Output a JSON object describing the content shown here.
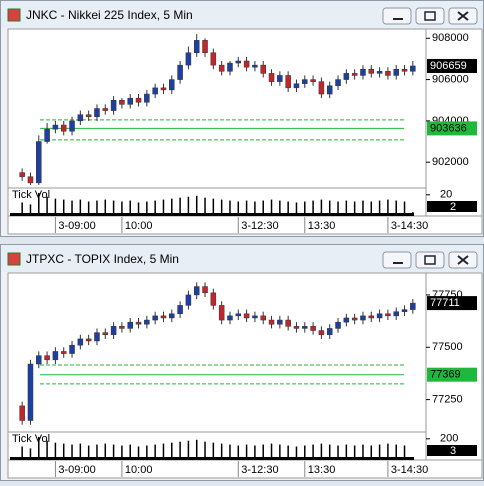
{
  "chart_data": [
    {
      "type": "candlestick",
      "title": "JNKC - Nikkei 225 Index, 5 Min",
      "open": [
        901500,
        901300,
        901000,
        903000,
        903600,
        903800,
        903500,
        904000,
        904300,
        904200,
        904600,
        904500,
        905000,
        904800,
        905100,
        904900,
        905300,
        905600,
        905500,
        906000,
        906700,
        907300,
        907900,
        907300,
        906700,
        906400,
        906800,
        906900,
        906600,
        906700,
        906300,
        905900,
        906200,
        905600,
        905800,
        906000,
        905900,
        905300,
        905700,
        906000,
        906300,
        906200,
        906500,
        906300,
        906400,
        906200,
        906500,
        906400
      ],
      "high": [
        901700,
        901500,
        903300,
        903900,
        904000,
        904000,
        904200,
        904500,
        904500,
        904800,
        904800,
        905200,
        905100,
        905300,
        905300,
        905500,
        905800,
        905800,
        906200,
        906900,
        907600,
        908200,
        908000,
        907500,
        906900,
        906900,
        907100,
        907100,
        906900,
        906900,
        906500,
        906400,
        906400,
        906000,
        906200,
        906200,
        906100,
        905900,
        906200,
        906500,
        906500,
        906700,
        906700,
        906600,
        906600,
        906700,
        906700,
        906900
      ],
      "low": [
        901100,
        900900,
        900900,
        902900,
        903400,
        903300,
        903300,
        903800,
        904000,
        904000,
        904300,
        904300,
        904600,
        904600,
        904700,
        904700,
        905100,
        905300,
        905300,
        905800,
        906500,
        907100,
        907100,
        906500,
        906200,
        906200,
        906600,
        906400,
        906400,
        906100,
        905700,
        905700,
        905400,
        905400,
        905600,
        905700,
        905100,
        905100,
        905500,
        905800,
        906000,
        906000,
        906100,
        906100,
        906000,
        906000,
        906200,
        906200
      ],
      "close": [
        901300,
        901000,
        903000,
        903600,
        903800,
        903500,
        904000,
        904300,
        904200,
        904600,
        904500,
        905000,
        904800,
        905100,
        904900,
        905300,
        905600,
        905500,
        906000,
        906700,
        907300,
        907900,
        907300,
        906700,
        906400,
        906800,
        906900,
        906600,
        906700,
        906300,
        905900,
        906200,
        905600,
        905800,
        906000,
        905900,
        905300,
        905700,
        906000,
        906300,
        906200,
        906500,
        906300,
        906400,
        906200,
        906500,
        906400,
        906659
      ],
      "up_color": "#1f3fa0",
      "down_color": "#c0262b",
      "ylim": [
        900800,
        908400
      ],
      "yticks": [
        902000,
        904000,
        906000,
        908000
      ],
      "levels": {
        "solid": 903636,
        "dashed": [
          904050,
          903080
        ],
        "color": "#1fb83a"
      },
      "xticks": [
        {
          "value": 4,
          "label": "3-09:00"
        },
        {
          "value": 12,
          "label": "10:00"
        },
        {
          "value": 26,
          "label": "3-12:30"
        },
        {
          "value": 34,
          "label": "13:30"
        },
        {
          "value": 44,
          "label": "3-14:30"
        }
      ],
      "volume_label": "Tick Vol",
      "volume": [
        12,
        10,
        22,
        18,
        16,
        15,
        14,
        15,
        13,
        14,
        15,
        14,
        13,
        14,
        12,
        13,
        14,
        15,
        16,
        17,
        18,
        19,
        17,
        16,
        15,
        14,
        13,
        14,
        13,
        14,
        15,
        14,
        13,
        12,
        13,
        14,
        15,
        14,
        13,
        14,
        13,
        14,
        13,
        14,
        15,
        14,
        13,
        2
      ],
      "volume_ylim": [
        0,
        25
      ],
      "volume_yticks": [
        20
      ]
    },
    {
      "type": "candlestick",
      "title": "JTPXC - TOPIX Index, 5 Min",
      "open": [
        77220,
        77150,
        77420,
        77460,
        77440,
        77480,
        77470,
        77510,
        77540,
        77530,
        77570,
        77560,
        77600,
        77590,
        77620,
        77610,
        77630,
        77650,
        77640,
        77660,
        77700,
        77750,
        77790,
        77760,
        77700,
        77630,
        77650,
        77660,
        77640,
        77650,
        77630,
        77610,
        77630,
        77600,
        77590,
        77600,
        77580,
        77560,
        77590,
        77620,
        77640,
        77630,
        77650,
        77640,
        77660,
        77650,
        77670,
        77680
      ],
      "high": [
        77240,
        77440,
        77480,
        77480,
        77500,
        77500,
        77530,
        77560,
        77560,
        77590,
        77590,
        77620,
        77620,
        77640,
        77640,
        77650,
        77670,
        77670,
        77680,
        77720,
        77770,
        77810,
        77810,
        77780,
        77720,
        77670,
        77680,
        77680,
        77670,
        77670,
        77650,
        77650,
        77650,
        77620,
        77620,
        77620,
        77600,
        77610,
        77640,
        77660,
        77660,
        77670,
        77670,
        77680,
        77680,
        77690,
        77700,
        77730
      ],
      "low": [
        77130,
        77130,
        77400,
        77420,
        77420,
        77450,
        77450,
        77490,
        77510,
        77510,
        77540,
        77540,
        77570,
        77570,
        77590,
        77590,
        77610,
        77620,
        77620,
        77640,
        77680,
        77730,
        77740,
        77680,
        77610,
        77610,
        77630,
        77620,
        77620,
        77610,
        77590,
        77590,
        77580,
        77570,
        77570,
        77560,
        77540,
        77540,
        77570,
        77600,
        77610,
        77610,
        77620,
        77620,
        77630,
        77630,
        77650,
        77660
      ],
      "close": [
        77150,
        77420,
        77460,
        77440,
        77480,
        77470,
        77510,
        77540,
        77530,
        77570,
        77560,
        77600,
        77590,
        77620,
        77610,
        77630,
        77650,
        77640,
        77660,
        77700,
        77750,
        77790,
        77760,
        77700,
        77630,
        77650,
        77660,
        77640,
        77650,
        77630,
        77610,
        77630,
        77600,
        77590,
        77600,
        77580,
        77560,
        77590,
        77620,
        77640,
        77630,
        77650,
        77640,
        77660,
        77650,
        77670,
        77680,
        77711
      ],
      "up_color": "#1f3fa0",
      "down_color": "#c0262b",
      "ylim": [
        77100,
        77850
      ],
      "yticks": [
        77250,
        77500,
        77750
      ],
      "levels": {
        "solid": 77369,
        "dashed": [
          77415,
          77325
        ],
        "color": "#1fb83a"
      },
      "xticks": [
        {
          "value": 4,
          "label": "3-09:00"
        },
        {
          "value": 12,
          "label": "10:00"
        },
        {
          "value": 26,
          "label": "3-12:30"
        },
        {
          "value": 34,
          "label": "13:30"
        },
        {
          "value": 44,
          "label": "3-14:30"
        }
      ],
      "volume_label": "Tick Vol",
      "volume": [
        120,
        100,
        220,
        180,
        160,
        150,
        140,
        150,
        130,
        140,
        150,
        140,
        130,
        140,
        120,
        130,
        140,
        150,
        160,
        170,
        180,
        190,
        170,
        160,
        150,
        140,
        130,
        140,
        130,
        140,
        150,
        140,
        130,
        120,
        130,
        140,
        150,
        140,
        130,
        140,
        130,
        140,
        130,
        140,
        150,
        140,
        130,
        3
      ],
      "volume_ylim": [
        0,
        250
      ],
      "volume_yticks": [
        200
      ]
    }
  ]
}
